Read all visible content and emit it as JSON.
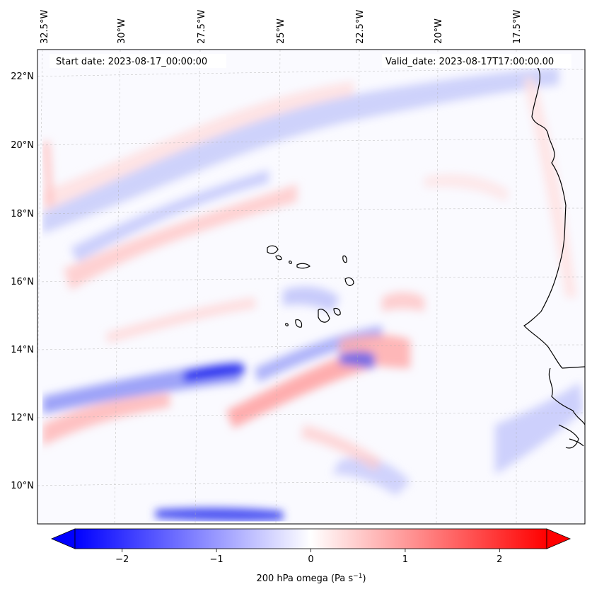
{
  "map": {
    "start_date": "Start date: 2023-08-17_00:00:00",
    "valid_date": "Valid_date: 2023-08-17T17:00:00.00",
    "lon_labels": [
      "32.5°W",
      "30°W",
      "27.5°W",
      "25°W",
      "22.5°W",
      "20°W",
      "17.5°W"
    ],
    "lat_labels": [
      "22°N",
      "20°N",
      "18°N",
      "16°N",
      "14°N",
      "12°N",
      "10°N"
    ],
    "colorbar": {
      "tick_labels": [
        "−2",
        "−1",
        "0",
        "1",
        "2"
      ],
      "tick_values": [
        -2,
        -1,
        0,
        1,
        2
      ],
      "vmin": -2.5,
      "vmax": 2.5,
      "label": "200 hPa omega (Pa s",
      "label_sup": "−1",
      "label_end": ")",
      "colors": {
        "low": "#0000ff",
        "mid": "#ffffff",
        "high": "#ff0000"
      }
    },
    "field_colors": {
      "coastline": "#000000",
      "gridline": "#b0b0b0"
    }
  }
}
